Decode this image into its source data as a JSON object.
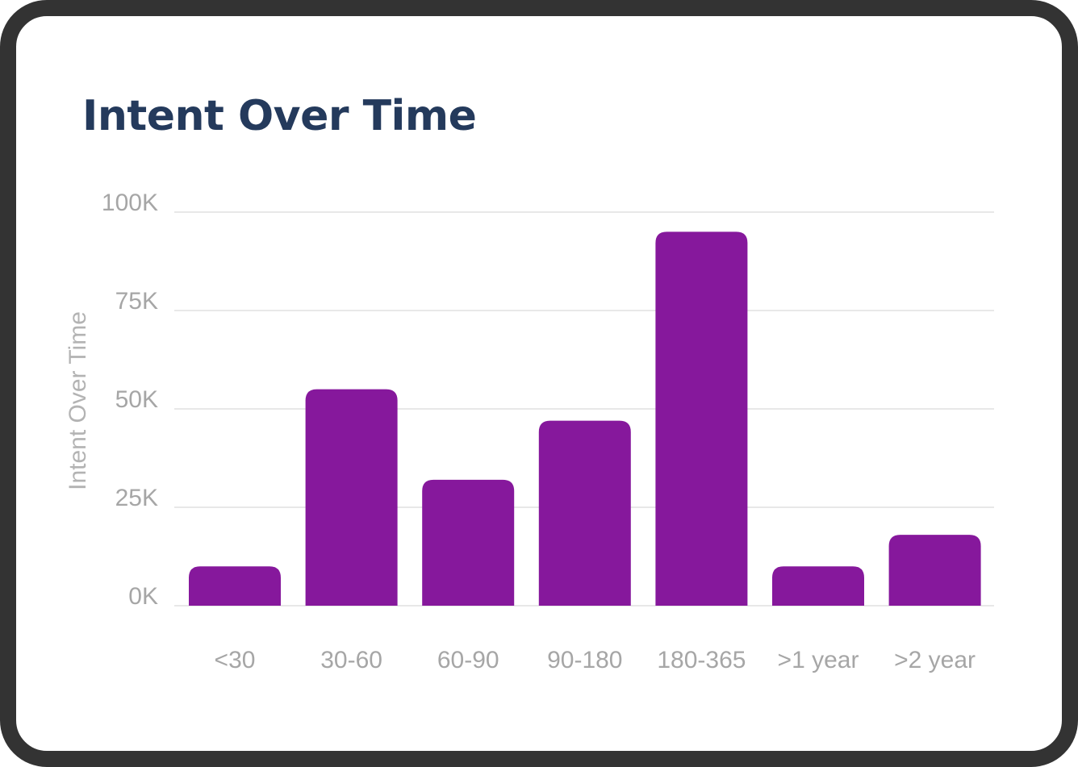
{
  "card": {
    "title": "Intent Over Time"
  },
  "colors": {
    "bar": "#86189c",
    "title": "#243a5c",
    "frame": "#333333",
    "grid": "#e8e8e8",
    "tick_text": "#a6a6a6"
  },
  "chart_data": {
    "type": "bar",
    "categories": [
      "<30",
      "30-60",
      "60-90",
      "90-180",
      "180-365",
      ">1 year",
      ">2 year"
    ],
    "values": [
      10000,
      55000,
      32000,
      47000,
      95000,
      10000,
      18000
    ],
    "ylabel": "Intent Over Time",
    "xlabel": "",
    "ylim": [
      0,
      100000
    ],
    "yticks": [
      {
        "value": 0,
        "label": "0K"
      },
      {
        "value": 25000,
        "label": "25K"
      },
      {
        "value": 50000,
        "label": "50K"
      },
      {
        "value": 75000,
        "label": "75K"
      },
      {
        "value": 100000,
        "label": "100K"
      }
    ],
    "grid": true,
    "legend": "none"
  }
}
